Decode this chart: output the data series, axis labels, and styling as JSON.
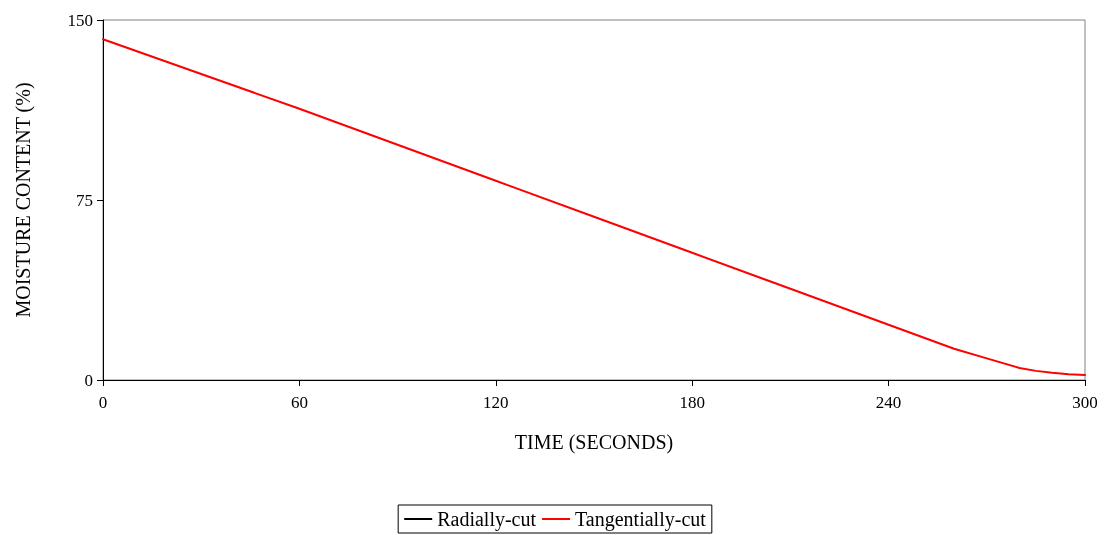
{
  "chart_data": {
    "type": "line",
    "xlabel": "TIME (SECONDS)",
    "ylabel": "MOISTURE CONTENT (%)",
    "x": [
      0,
      30,
      60,
      90,
      120,
      150,
      180,
      210,
      240,
      255,
      260,
      270,
      280,
      285,
      290,
      295,
      300
    ],
    "series": [
      {
        "name": "Radially-cut",
        "color": "#000000",
        "values": [
          null,
          null,
          null,
          null,
          null,
          null,
          null,
          null,
          null,
          null,
          null,
          null,
          null,
          null,
          null,
          null,
          null
        ]
      },
      {
        "name": "Tangentially-cut",
        "color": "#ff0000",
        "values": [
          142,
          127.5,
          113,
          98,
          83,
          68,
          53,
          38,
          23,
          15.5,
          13,
          9,
          5,
          3.8,
          3,
          2.4,
          2.1
        ]
      }
    ],
    "xlim": [
      0,
      300
    ],
    "xticks": [
      0,
      60,
      120,
      180,
      240,
      300
    ],
    "ylim": [
      0,
      150
    ],
    "yticks": [
      0,
      75,
      150
    ],
    "grid": false,
    "legend": "bottom",
    "marker": "none",
    "line_style": "solid"
  }
}
